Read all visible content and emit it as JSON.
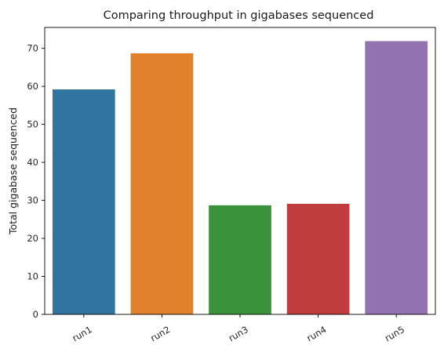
{
  "chart_data": {
    "type": "bar",
    "title": "Comparing throughput in gigabases sequenced",
    "xlabel": "",
    "ylabel": "Total gigabase sequenced",
    "categories": [
      "run1",
      "run2",
      "run3",
      "run4",
      "run5"
    ],
    "values": [
      59.2,
      68.7,
      28.7,
      29.1,
      71.9
    ],
    "colors": [
      "#3274a1",
      "#e1812c",
      "#3a923a",
      "#c03d3e",
      "#9372b2"
    ],
    "ylim": [
      0,
      75.5
    ],
    "yticks": [
      0,
      10,
      20,
      30,
      40,
      50,
      60,
      70
    ],
    "grid": false,
    "legend": "none"
  }
}
